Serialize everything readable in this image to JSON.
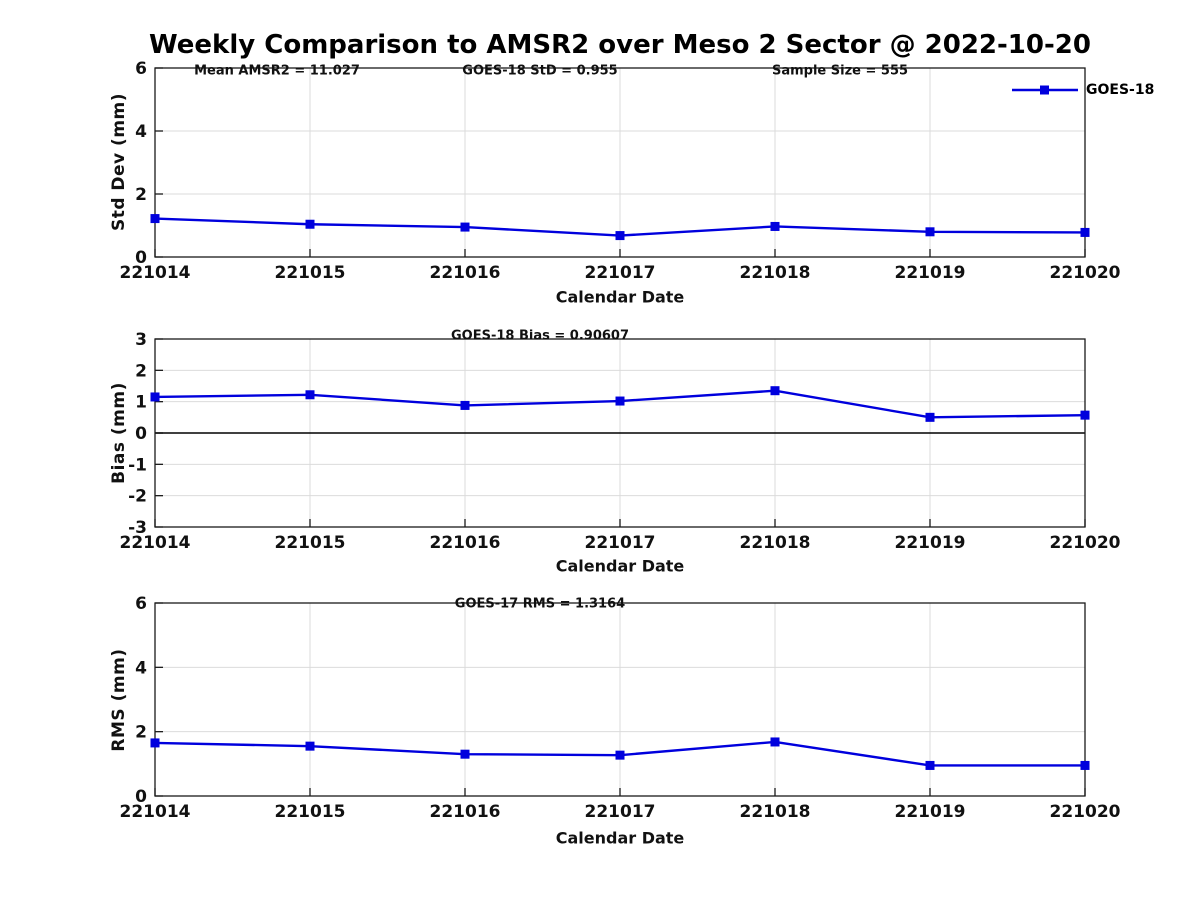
{
  "title": "Weekly Comparison to AMSR2 over Meso 2 Sector @ 2022-10-20",
  "legend": {
    "label": "GOES-18"
  },
  "colors": {
    "line": "#0000DD",
    "grid": "#DBDBDB",
    "axis": "#1A1A1A",
    "zero_line": "#000000",
    "text": "#111111"
  },
  "chart_data": [
    {
      "type": "line",
      "annotations": [
        {
          "text": "Mean AMSR2 = 11.027"
        },
        {
          "text": "GOES-18 StD = 0.955"
        },
        {
          "text": "Sample Size = 555"
        }
      ],
      "ylabel": "Std Dev (mm)",
      "xlabel": "Calendar Date",
      "categories": [
        "221014",
        "221015",
        "221016",
        "221017",
        "221018",
        "221019",
        "221020"
      ],
      "series": [
        {
          "name": "GOES-18",
          "values": [
            1.22,
            1.04,
            0.95,
            0.68,
            0.97,
            0.8,
            0.78
          ]
        }
      ],
      "ylim": [
        0,
        6
      ],
      "y_ticks": [
        0,
        2,
        4,
        6
      ],
      "grid": true,
      "legend_position": "top-right"
    },
    {
      "type": "line",
      "annotations": [
        {
          "text": "GOES-18 Bias  = 0.90607"
        }
      ],
      "ylabel": "Bias (mm)",
      "xlabel": "Calendar Date",
      "categories": [
        "221014",
        "221015",
        "221016",
        "221017",
        "221018",
        "221019",
        "221020"
      ],
      "series": [
        {
          "name": "GOES-18",
          "values": [
            1.15,
            1.22,
            0.88,
            1.02,
            1.35,
            0.5,
            0.57
          ]
        }
      ],
      "ylim": [
        -3,
        3
      ],
      "y_ticks": [
        -3,
        -2,
        -1,
        0,
        1,
        2,
        3
      ],
      "grid": true,
      "zero_line": true
    },
    {
      "type": "line",
      "annotations": [
        {
          "text": "GOES-17 RMS = 1.3164"
        }
      ],
      "ylabel": "RMS (mm)",
      "xlabel": "Calendar Date",
      "categories": [
        "221014",
        "221015",
        "221016",
        "221017",
        "221018",
        "221019",
        "221020"
      ],
      "series": [
        {
          "name": "GOES-18",
          "values": [
            1.65,
            1.55,
            1.3,
            1.27,
            1.68,
            0.95,
            0.95
          ]
        }
      ],
      "ylim": [
        0,
        6
      ],
      "y_ticks": [
        0,
        2,
        4,
        6
      ],
      "grid": true
    }
  ]
}
